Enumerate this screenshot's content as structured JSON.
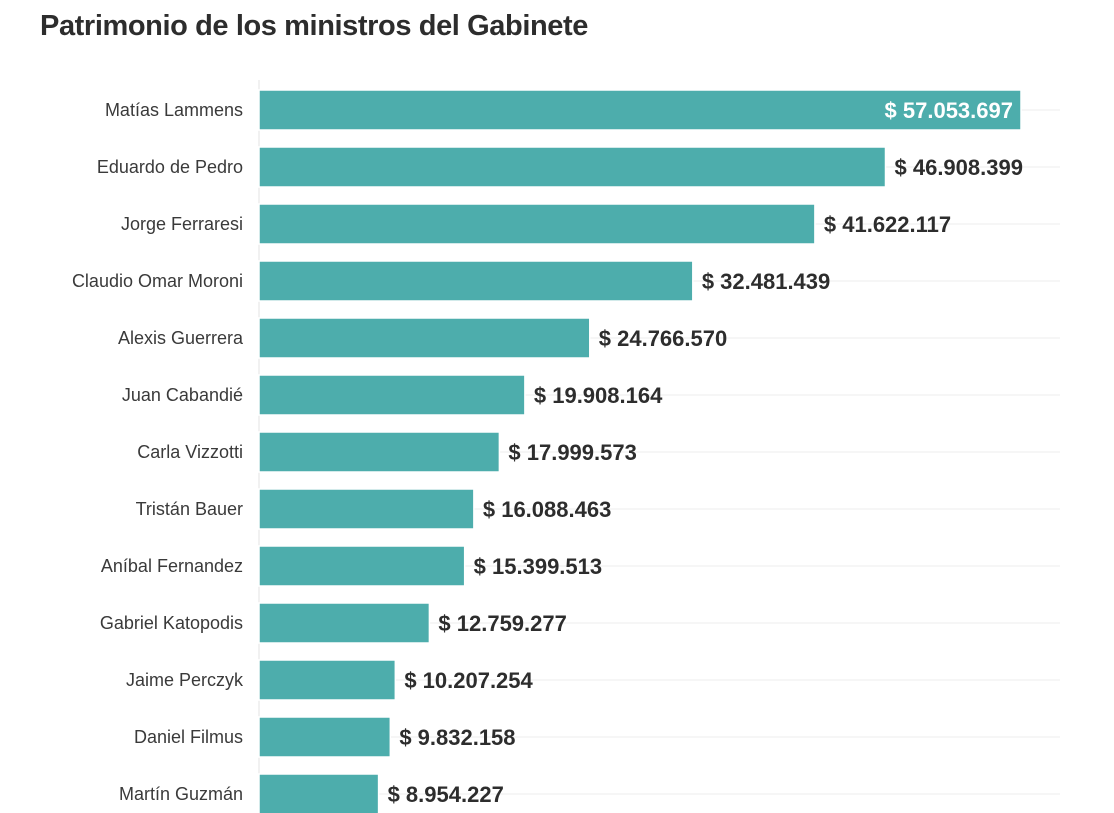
{
  "chart_data": {
    "type": "bar",
    "orientation": "horizontal",
    "title": "Patrimonio de los ministros del Gabinete",
    "xlabel": "",
    "ylabel": "",
    "xlim": [
      0,
      60000000
    ],
    "grid": true,
    "bar_color": "#4dadac",
    "categories": [
      "Matías Lammens",
      "Eduardo de Pedro",
      "Jorge Ferraresi",
      "Claudio Omar Moroni",
      "Alexis Guerrera",
      "Juan Cabandié",
      "Carla Vizzotti",
      "Tristán Bauer",
      "Aníbal Fernandez",
      "Gabriel Katopodis",
      "Jaime Perczyk",
      "Daniel Filmus",
      "Martín Guzmán"
    ],
    "values": [
      57053697,
      46908399,
      41622117,
      32481439,
      24766570,
      19908164,
      17999573,
      16088463,
      15399513,
      12759277,
      10207254,
      9832158,
      8954227
    ],
    "value_labels": [
      "$ 57.053.697",
      "$ 46.908.399",
      "$ 41.622.117",
      "$ 32.481.439",
      "$ 24.766.570",
      "$ 19.908.164",
      "$ 17.999.573",
      "$ 16.088.463",
      "$ 15.399.513",
      "$ 12.759.277",
      "$ 10.207.254",
      "$ 9.832.158",
      "$ 8.954.227"
    ]
  }
}
